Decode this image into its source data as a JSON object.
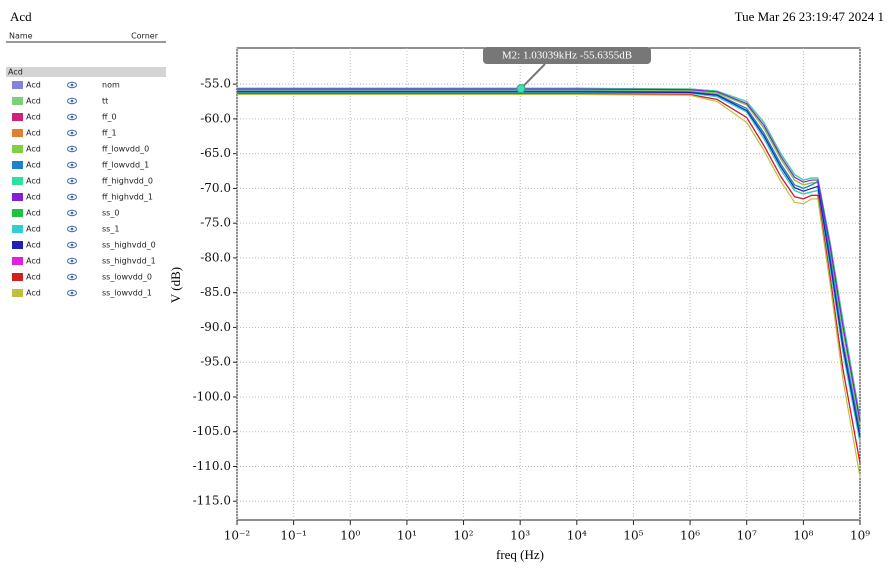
{
  "chart_data": {
    "type": "line",
    "title": "Acd",
    "timestamp": "Tue Mar 26 23:19:47 2024  1",
    "legend_headers": [
      "Name",
      "Corner"
    ],
    "xlabel": "freq (Hz)",
    "ylabel": "V (dB)",
    "xscale": "log",
    "grid": true,
    "xlim": [
      0.01,
      1000000000
    ],
    "ylim": [
      -117.7,
      -49.8
    ],
    "xticks": [
      {
        "value": 0.01,
        "label": "10⁻²"
      },
      {
        "value": 0.1,
        "label": "10⁻¹"
      },
      {
        "value": 1,
        "label": "10⁰"
      },
      {
        "value": 10,
        "label": "10¹"
      },
      {
        "value": 100,
        "label": "10²"
      },
      {
        "value": 1000,
        "label": "10³"
      },
      {
        "value": 10000,
        "label": "10⁴"
      },
      {
        "value": 100000,
        "label": "10⁵"
      },
      {
        "value": 1000000,
        "label": "10⁶"
      },
      {
        "value": 10000000,
        "label": "10⁷"
      },
      {
        "value": 100000000,
        "label": "10⁸"
      },
      {
        "value": 1000000000,
        "label": "10⁹"
      }
    ],
    "yticks": [
      {
        "value": -55,
        "label": "-55.0"
      },
      {
        "value": -60,
        "label": "-60.0"
      },
      {
        "value": -65,
        "label": "-65.0"
      },
      {
        "value": -70,
        "label": "-70.0"
      },
      {
        "value": -75,
        "label": "-75.0"
      },
      {
        "value": -80,
        "label": "-80.0"
      },
      {
        "value": -85,
        "label": "-85.0"
      },
      {
        "value": -90,
        "label": "-90.0"
      },
      {
        "value": -95,
        "label": "-95.0"
      },
      {
        "value": -100,
        "label": "-100.0"
      },
      {
        "value": -105,
        "label": "-105.0"
      },
      {
        "value": -110,
        "label": "-110.0"
      },
      {
        "value": -115,
        "label": "-115.0"
      }
    ],
    "x": [
      0.01,
      1,
      100,
      10000,
      1000000,
      3000000,
      10000000,
      20000000,
      40000000,
      70000000,
      100000000,
      140000000,
      180000000,
      300000000,
      500000000,
      1000000000
    ],
    "series": [
      {
        "name": "nom",
        "color": "#8484d8",
        "values": [
          -56.0,
          -56.0,
          -56.0,
          -56.0,
          -56.1,
          -56.5,
          -58.5,
          -62.0,
          -66.5,
          -69.5,
          -70.0,
          -69.5,
          -69.0,
          -80.0,
          -92.0,
          -105.0
        ]
      },
      {
        "name": "tt",
        "color": "#7cd07c",
        "values": [
          -56.0,
          -56.0,
          -56.0,
          -56.0,
          -56.1,
          -56.5,
          -58.5,
          -62.0,
          -66.5,
          -69.5,
          -70.0,
          -69.5,
          -69.0,
          -80.0,
          -92.0,
          -105.0
        ]
      },
      {
        "name": "ff_0",
        "color": "#d0207a",
        "values": [
          -55.6,
          -55.6,
          -55.6,
          -55.6,
          -55.7,
          -56.0,
          -57.5,
          -60.5,
          -65.0,
          -68.0,
          -68.8,
          -68.5,
          -68.5,
          -78.0,
          -89.0,
          -103.0
        ]
      },
      {
        "name": "ff_1",
        "color": "#e08030",
        "values": [
          -55.8,
          -55.8,
          -55.8,
          -55.8,
          -55.9,
          -56.3,
          -58.0,
          -61.3,
          -65.8,
          -68.8,
          -69.5,
          -69.2,
          -69.2,
          -79.0,
          -90.5,
          -104.0
        ]
      },
      {
        "name": "ff_lowvdd_0",
        "color": "#80d040",
        "values": [
          -55.8,
          -55.8,
          -55.8,
          -55.8,
          -55.9,
          -56.3,
          -58.0,
          -61.3,
          -65.8,
          -68.8,
          -69.5,
          -69.2,
          -69.2,
          -79.0,
          -90.5,
          -104.0
        ]
      },
      {
        "name": "ff_lowvdd_1",
        "color": "#2080d0",
        "values": [
          -56.0,
          -56.0,
          -56.0,
          -56.0,
          -56.1,
          -56.5,
          -58.5,
          -62.0,
          -66.5,
          -69.5,
          -70.0,
          -69.5,
          -69.0,
          -80.0,
          -92.0,
          -105.0
        ]
      },
      {
        "name": "ff_highvdd_0",
        "color": "#30e0a0",
        "values": [
          -55.6,
          -55.6,
          -55.6,
          -55.6,
          -55.7,
          -56.0,
          -57.5,
          -60.5,
          -65.0,
          -68.0,
          -68.8,
          -68.5,
          -68.5,
          -78.0,
          -89.0,
          -103.0
        ]
      },
      {
        "name": "ff_highvdd_1",
        "color": "#8020d0",
        "values": [
          -55.7,
          -55.7,
          -55.7,
          -55.7,
          -55.8,
          -56.1,
          -57.8,
          -60.9,
          -65.4,
          -68.4,
          -69.1,
          -68.8,
          -68.8,
          -78.5,
          -89.8,
          -103.5
        ]
      },
      {
        "name": "ss_0",
        "color": "#20c040",
        "values": [
          -56.2,
          -56.2,
          -56.2,
          -56.2,
          -56.3,
          -56.8,
          -59.0,
          -62.8,
          -67.3,
          -70.3,
          -70.8,
          -70.5,
          -70.3,
          -81.5,
          -93.5,
          -106.5
        ]
      },
      {
        "name": "ss_1",
        "color": "#30d0d0",
        "values": [
          -56.2,
          -56.2,
          -56.2,
          -56.2,
          -56.3,
          -56.8,
          -59.0,
          -62.8,
          -67.3,
          -70.3,
          -70.8,
          -70.5,
          -70.3,
          -81.5,
          -93.5,
          -106.5
        ]
      },
      {
        "name": "ss_highvdd_0",
        "color": "#2020b0",
        "values": [
          -56.1,
          -56.1,
          -56.1,
          -56.1,
          -56.2,
          -56.6,
          -58.8,
          -62.4,
          -66.9,
          -69.9,
          -70.4,
          -70.0,
          -69.7,
          -80.8,
          -92.8,
          -105.8
        ]
      },
      {
        "name": "ss_highvdd_1",
        "color": "#e020e0",
        "values": [
          -56.4,
          -56.4,
          -56.4,
          -56.4,
          -56.5,
          -57.2,
          -59.8,
          -63.8,
          -68.3,
          -71.2,
          -71.5,
          -71.0,
          -71.0,
          -83.0,
          -96.0,
          -109.5
        ]
      },
      {
        "name": "ss_lowvdd_0",
        "color": "#d02020",
        "values": [
          -56.4,
          -56.4,
          -56.4,
          -56.4,
          -56.5,
          -57.2,
          -59.8,
          -63.8,
          -68.3,
          -71.2,
          -71.5,
          -71.0,
          -71.0,
          -83.0,
          -96.0,
          -109.5
        ]
      },
      {
        "name": "ss_lowvdd_1",
        "color": "#c0c040",
        "values": [
          -56.5,
          -56.5,
          -56.5,
          -56.5,
          -56.6,
          -57.5,
          -60.5,
          -64.5,
          -69.0,
          -72.0,
          -72.2,
          -71.5,
          -71.5,
          -84.0,
          -97.5,
          -111.5
        ]
      }
    ],
    "marker": {
      "x": 1030.39,
      "y": -55.6355,
      "color": "#40e0b0",
      "label": "M2: 1.03039kHz -55.6355dB"
    }
  }
}
